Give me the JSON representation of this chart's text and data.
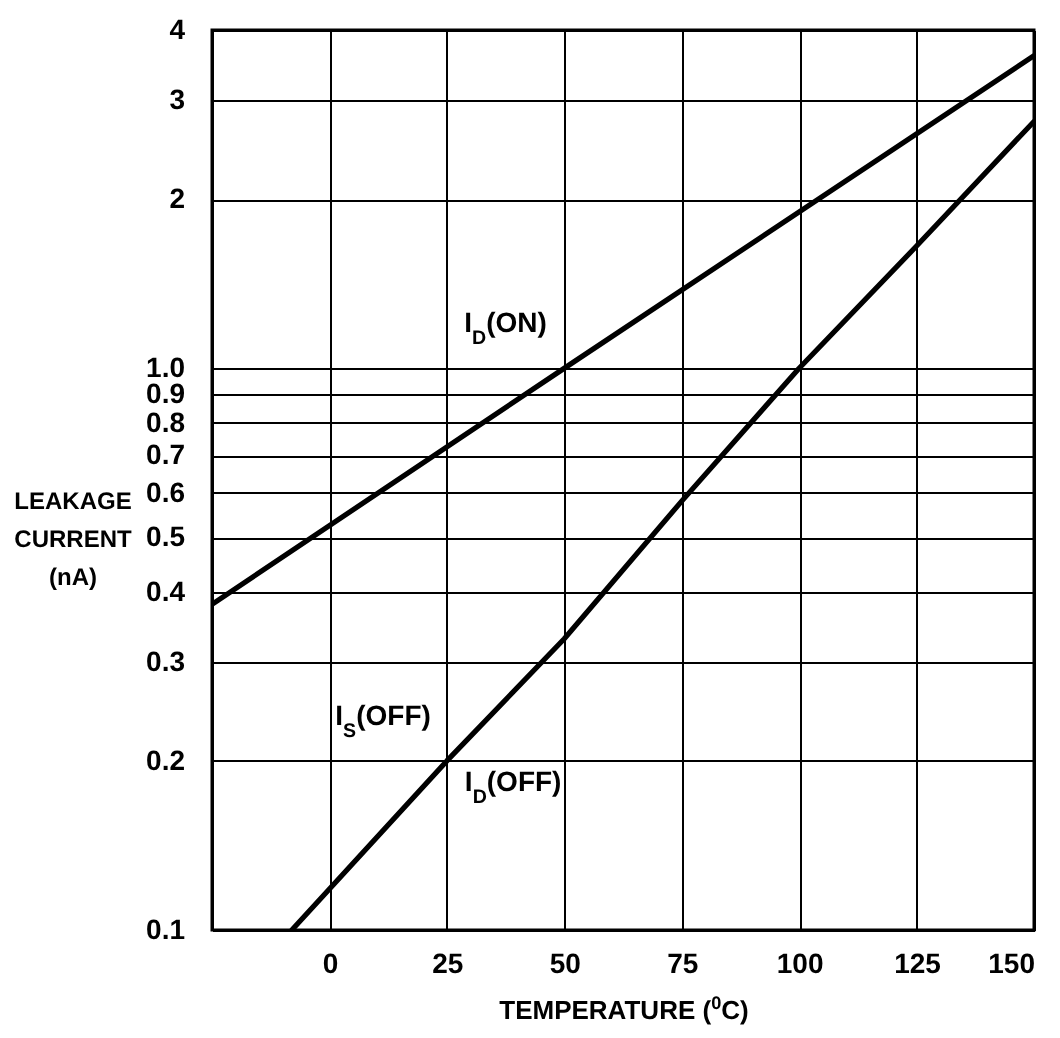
{
  "chart_data": {
    "type": "line",
    "xlabel": "TEMPERATURE ($^{0}$C)",
    "ylabel": "LEAKAGE CURRENT (nA)",
    "series": [
      {
        "color": "#000000",
        "x": [
          -25,
          50,
          150
        ],
        "values": [
          0.38,
          1.0,
          3.6
        ]
      },
      {
        "color": "#000000",
        "x": [
          -8,
          25,
          50,
          75,
          100,
          125,
          150
        ],
        "values": [
          0.1,
          0.2,
          0.33,
          0.58,
          1.0,
          1.65,
          2.75
        ]
      }
    ],
    "annotations": [
      "I$_{D}$(ON)",
      "I$_{S}$(OFF)",
      "I$_{D}$(OFF)"
    ],
    "xlim": [
      -25,
      150
    ],
    "xticks": [
      {
        "value": -25,
        "label": null
      },
      0,
      25,
      50,
      75,
      100,
      125,
      150
    ],
    "ylim": [
      0.1,
      4
    ],
    "yticks": [
      0.1,
      0.2,
      0.3,
      0.4,
      0.5,
      0.6,
      0.7,
      0.8,
      0.9,
      {
        "value": 1,
        "label": "1.0"
      },
      2,
      3,
      4
    ],
    "log": "y",
    "grid": true,
    "marker": "none",
    "line_style": "solid"
  }
}
